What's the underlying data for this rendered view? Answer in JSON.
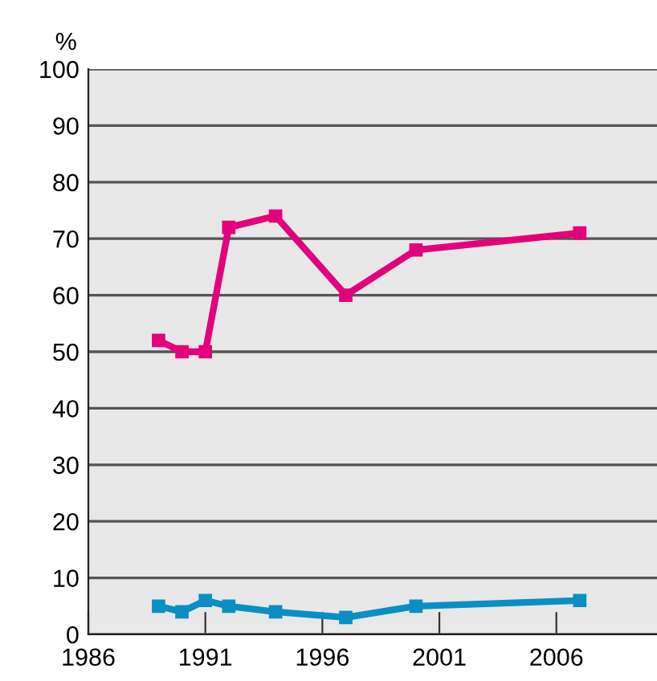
{
  "chart_data": {
    "type": "line",
    "ylabel": "%",
    "x": [
      1989,
      1990,
      1991,
      1992,
      1994,
      1997,
      2000,
      2007
    ],
    "series": [
      {
        "color": "#e3007b",
        "values": [
          52,
          50,
          50,
          72,
          74,
          60,
          68,
          71
        ]
      },
      {
        "color": "#0a8fc4",
        "values": [
          5,
          4,
          6,
          5,
          4,
          3,
          5,
          6
        ]
      }
    ],
    "xlim": [
      1986,
      2010.3
    ],
    "xticks": [
      1986,
      1991,
      1996,
      2001,
      2006
    ],
    "ylim": [
      0,
      100
    ],
    "yticks": [
      0,
      10,
      20,
      30,
      40,
      50,
      60,
      70,
      80,
      90,
      100
    ],
    "grid": "y",
    "marker": "square",
    "line_style": "solid",
    "legend": false
  }
}
